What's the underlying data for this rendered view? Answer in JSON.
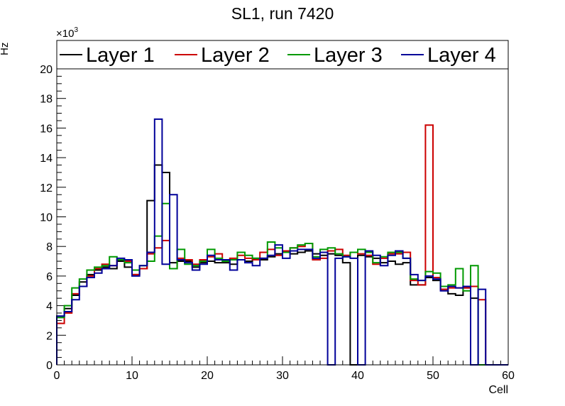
{
  "chart_data": {
    "type": "histogram-step",
    "title": "SL1, run 7420",
    "xlabel": "Cell",
    "ylabel": "Hz",
    "y_multiplier_base": "×10",
    "y_multiplier_exp": "3",
    "xlim": [
      0,
      60
    ],
    "ylim": [
      0,
      20
    ],
    "x_ticks": [
      0,
      10,
      20,
      30,
      40,
      50,
      60
    ],
    "y_ticks": [
      0,
      2,
      4,
      6,
      8,
      10,
      12,
      14,
      16,
      18,
      20
    ],
    "bin_width": 1,
    "legend_position": "top",
    "series": [
      {
        "name": "Layer 1",
        "color": "#000000",
        "values": [
          3.2,
          3.8,
          4.7,
          5.6,
          6.1,
          6.4,
          6.6,
          6.5,
          7.0,
          6.6,
          6.1,
          6.5,
          11.1,
          13.5,
          13.0,
          6.9,
          7.0,
          7.0,
          6.6,
          6.9,
          7.0,
          6.9,
          6.9,
          6.8,
          7.1,
          7.0,
          7.2,
          7.1,
          7.3,
          7.5,
          7.6,
          7.5,
          7.6,
          7.7,
          7.5,
          7.4,
          7.5,
          7.4,
          6.9,
          0.0,
          7.4,
          7.3,
          7.2,
          6.9,
          7.0,
          6.8,
          6.9,
          5.4,
          5.4,
          5.9,
          5.7,
          5.1,
          4.8,
          4.7,
          5.2,
          4.5,
          0.0,
          0.0,
          0.0,
          0.0
        ]
      },
      {
        "name": "Layer 2",
        "color": "#cc0000",
        "values": [
          2.8,
          3.5,
          4.8,
          5.3,
          6.0,
          6.5,
          6.8,
          6.7,
          7.1,
          7.0,
          6.1,
          6.5,
          7.5,
          7.9,
          8.4,
          6.5,
          7.2,
          7.1,
          6.8,
          7.1,
          7.3,
          7.5,
          7.1,
          7.2,
          7.4,
          7.2,
          7.1,
          7.6,
          7.8,
          7.4,
          7.7,
          7.9,
          8.0,
          8.2,
          7.1,
          7.2,
          7.7,
          7.8,
          7.4,
          7.6,
          7.5,
          7.4,
          6.8,
          7.2,
          7.5,
          7.5,
          7.6,
          5.7,
          5.4,
          16.2,
          5.9,
          5.1,
          5.2,
          5.2,
          5.2,
          5.3,
          4.4,
          0.0,
          0.0,
          0.0
        ]
      },
      {
        "name": "Layer 3",
        "color": "#009900",
        "values": [
          3.2,
          4.0,
          5.2,
          5.8,
          6.4,
          6.6,
          6.7,
          7.3,
          7.1,
          6.9,
          6.4,
          6.7,
          7.0,
          8.7,
          10.9,
          6.5,
          7.8,
          6.8,
          6.7,
          7.0,
          7.8,
          7.2,
          7.0,
          7.1,
          7.6,
          7.4,
          7.2,
          7.2,
          8.3,
          7.9,
          7.6,
          7.9,
          8.1,
          8.2,
          7.3,
          7.8,
          7.9,
          7.5,
          7.3,
          7.6,
          7.8,
          7.6,
          6.9,
          7.3,
          7.6,
          7.6,
          7.2,
          5.8,
          5.7,
          6.3,
          6.2,
          5.3,
          5.4,
          6.5,
          5.0,
          6.7,
          0.0,
          0.0,
          0.0,
          0.0
        ]
      },
      {
        "name": "Layer 4",
        "color": "#000099",
        "values": [
          3.3,
          3.6,
          4.4,
          5.3,
          5.9,
          6.2,
          6.5,
          6.7,
          7.2,
          7.1,
          6.0,
          6.7,
          7.6,
          16.6,
          6.8,
          11.5,
          7.1,
          6.9,
          6.4,
          6.8,
          7.4,
          7.1,
          7.1,
          6.4,
          7.1,
          6.9,
          6.7,
          7.2,
          7.4,
          8.1,
          7.2,
          7.7,
          7.8,
          7.8,
          7.2,
          7.6,
          0.0,
          7.2,
          7.3,
          7.2,
          0.0,
          7.7,
          7.4,
          6.7,
          7.4,
          7.7,
          7.2,
          6.1,
          5.7,
          6.0,
          5.8,
          5.0,
          5.3,
          5.2,
          5.3,
          0.0,
          5.1,
          0.0,
          0.0,
          0.0
        ]
      }
    ]
  }
}
